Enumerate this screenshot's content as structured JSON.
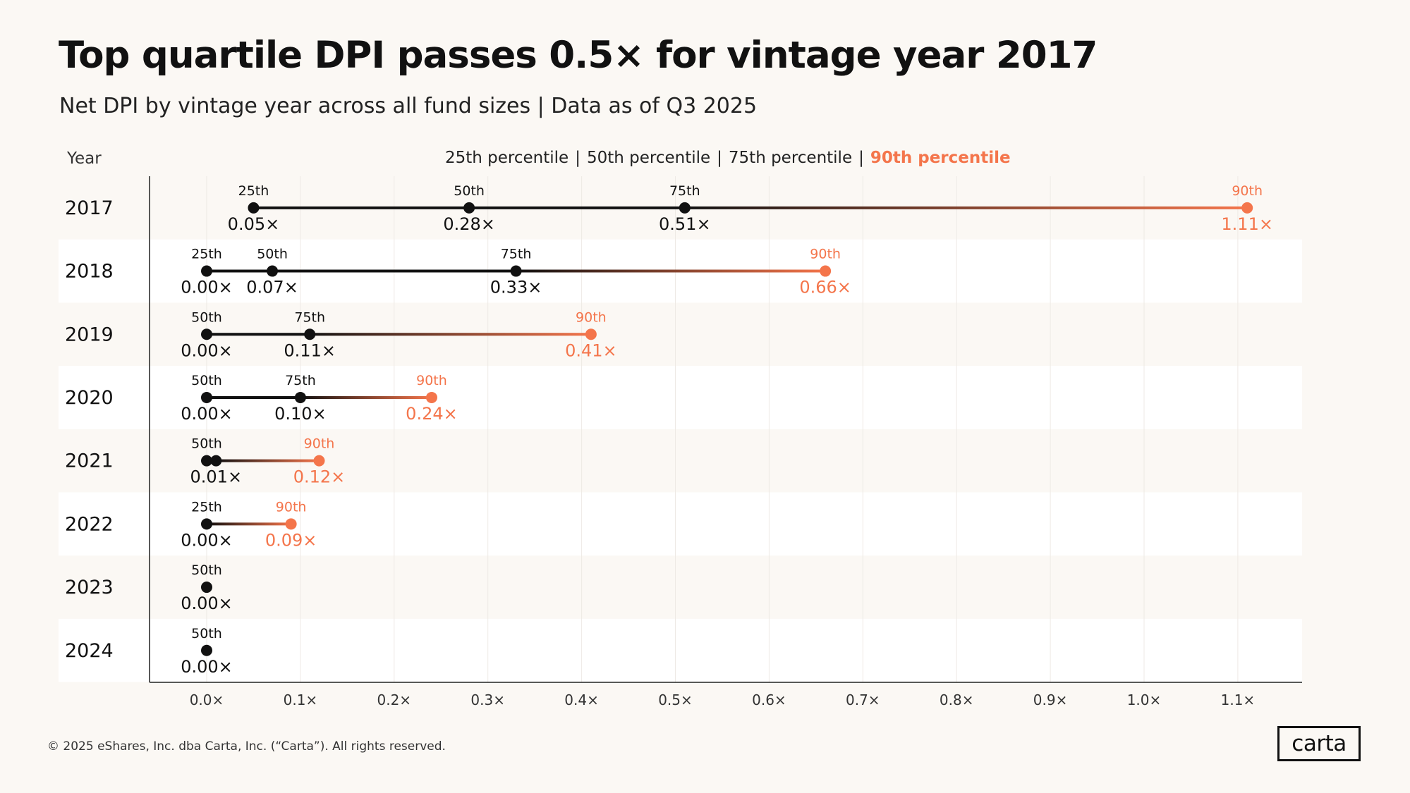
{
  "title": "Top quartile DPI passes 0.5× for vintage year 2017",
  "subtitle": "Net DPI by vintage year across all fund sizes | Data as of Q3 2025",
  "year_header": "Year",
  "legend": {
    "items": [
      "25th percentile",
      "50th percentile",
      "75th percentile",
      "90th percentile"
    ],
    "separator": "|",
    "highlight_color": "#F4754B"
  },
  "colors": {
    "dark": "#111111",
    "accent": "#F4754B",
    "band": "#FFFFFF",
    "background": "#FBF8F4"
  },
  "chart_data": {
    "type": "dumbbell",
    "xlim": [
      0,
      1.1
    ],
    "x_ticks": [
      "0.0×",
      "0.1×",
      "0.2×",
      "0.3×",
      "0.4×",
      "0.5×",
      "0.6×",
      "0.7×",
      "0.8×",
      "0.9×",
      "1.0×",
      "1.1×"
    ],
    "x_tick_values": [
      0,
      0.1,
      0.2,
      0.3,
      0.4,
      0.5,
      0.6,
      0.7,
      0.8,
      0.9,
      1.0,
      1.1
    ],
    "grid": true,
    "rows": [
      {
        "year": "2017",
        "points": [
          {
            "label": "25th",
            "value": 0.05,
            "text": "0.05×"
          },
          {
            "label": "50th",
            "value": 0.28,
            "text": "0.28×"
          },
          {
            "label": "75th",
            "value": 0.51,
            "text": "0.51×"
          },
          {
            "label": "90th",
            "value": 1.11,
            "text": "1.11×",
            "accent": true
          }
        ]
      },
      {
        "year": "2018",
        "points": [
          {
            "label": "25th",
            "value": 0.0,
            "text": "0.00×"
          },
          {
            "label": "50th",
            "value": 0.07,
            "text": "0.07×"
          },
          {
            "label": "75th",
            "value": 0.33,
            "text": "0.33×"
          },
          {
            "label": "90th",
            "value": 0.66,
            "text": "0.66×",
            "accent": true
          }
        ]
      },
      {
        "year": "2019",
        "points": [
          {
            "label": "50th",
            "value": 0.0,
            "text": "0.00×"
          },
          {
            "label": "75th",
            "value": 0.11,
            "text": "0.11×"
          },
          {
            "label": "90th",
            "value": 0.41,
            "text": "0.41×",
            "accent": true
          }
        ]
      },
      {
        "year": "2020",
        "points": [
          {
            "label": "50th",
            "value": 0.0,
            "text": "0.00×"
          },
          {
            "label": "75th",
            "value": 0.1,
            "text": "0.10×"
          },
          {
            "label": "90th",
            "value": 0.24,
            "text": "0.24×",
            "accent": true
          }
        ]
      },
      {
        "year": "2021",
        "points": [
          {
            "label": "50th",
            "value": 0.0,
            "text": ""
          },
          {
            "label": "",
            "value": 0.01,
            "text": "0.01×"
          },
          {
            "label": "90th",
            "value": 0.12,
            "text": "0.12×",
            "accent": true
          }
        ]
      },
      {
        "year": "2022",
        "points": [
          {
            "label": "25th",
            "value": 0.0,
            "text": "0.00×"
          },
          {
            "label": "90th",
            "value": 0.09,
            "text": "0.09×",
            "accent": true
          }
        ]
      },
      {
        "year": "2023",
        "points": [
          {
            "label": "50th",
            "value": 0.0,
            "text": "0.00×"
          }
        ]
      },
      {
        "year": "2024",
        "points": [
          {
            "label": "50th",
            "value": 0.0,
            "text": "0.00×"
          }
        ]
      }
    ]
  },
  "footer": "© 2025 eShares, Inc. dba Carta, Inc. (“Carta”). All rights reserved.",
  "logo": "carta"
}
